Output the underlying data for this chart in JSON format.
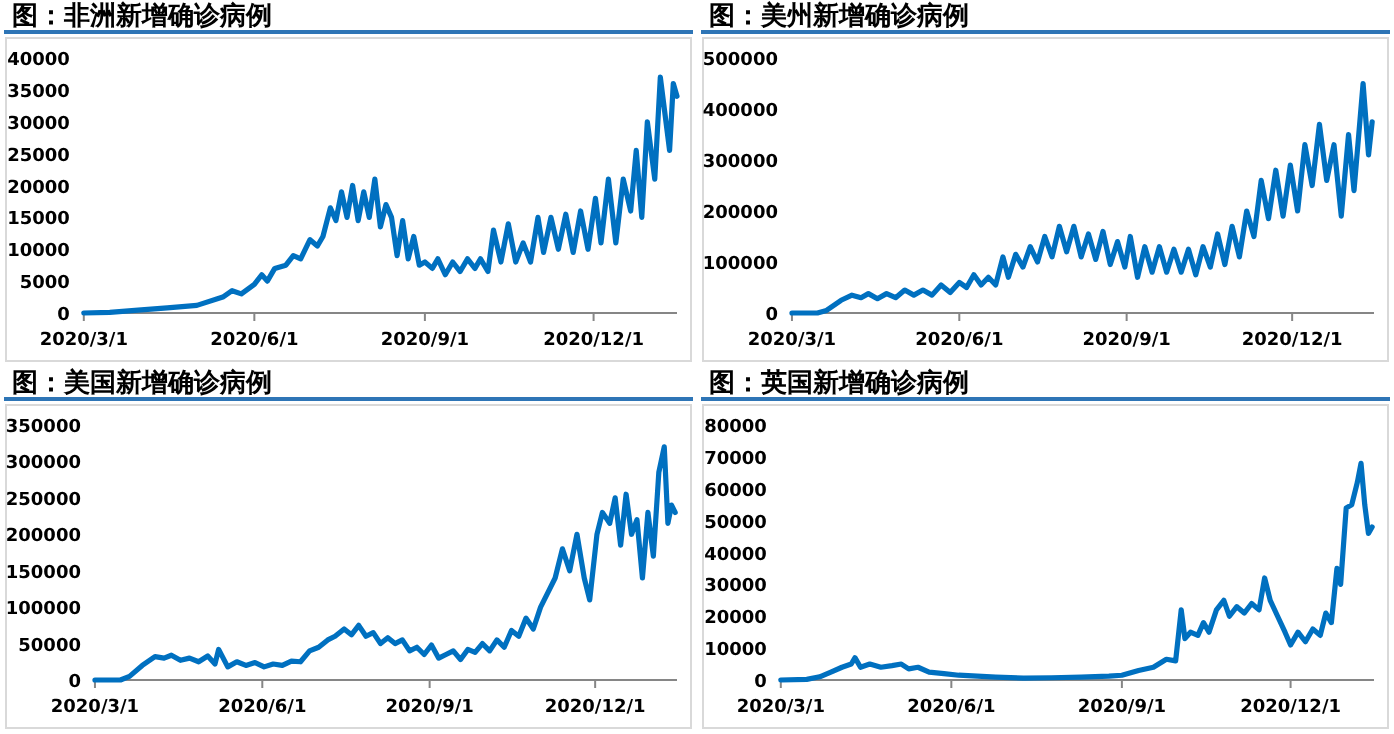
{
  "chart_data": [
    {
      "type": "line",
      "title": "图：非洲新增确诊病例",
      "xlim": [
        "2020-03-01",
        "2021-01-15"
      ],
      "ylim": [
        0,
        40000
      ],
      "yticks": [
        0,
        5000,
        10000,
        15000,
        20000,
        25000,
        30000,
        35000,
        40000
      ],
      "xticks": [
        {
          "value": "2020-03-01",
          "label": "2020/3/1"
        },
        {
          "value": "2020-06-01",
          "label": "2020/6/1"
        },
        {
          "value": "2020-09-01",
          "label": "2020/9/1"
        },
        {
          "value": "2020-12-01",
          "label": "2020/12/1"
        }
      ],
      "x": [
        "2020-03-01",
        "2020-03-15",
        "2020-04-01",
        "2020-04-15",
        "2020-05-01",
        "2020-05-15",
        "2020-05-20",
        "2020-05-25",
        "2020-06-01",
        "2020-06-05",
        "2020-06-08",
        "2020-06-12",
        "2020-06-18",
        "2020-06-22",
        "2020-06-26",
        "2020-07-01",
        "2020-07-05",
        "2020-07-08",
        "2020-07-12",
        "2020-07-15",
        "2020-07-18",
        "2020-07-21",
        "2020-07-24",
        "2020-07-27",
        "2020-07-30",
        "2020-08-02",
        "2020-08-05",
        "2020-08-08",
        "2020-08-11",
        "2020-08-14",
        "2020-08-17",
        "2020-08-20",
        "2020-08-23",
        "2020-08-26",
        "2020-08-29",
        "2020-09-01",
        "2020-09-05",
        "2020-09-08",
        "2020-09-12",
        "2020-09-16",
        "2020-09-20",
        "2020-09-24",
        "2020-09-28",
        "2020-10-01",
        "2020-10-05",
        "2020-10-08",
        "2020-10-12",
        "2020-10-16",
        "2020-10-20",
        "2020-10-24",
        "2020-10-28",
        "2020-11-01",
        "2020-11-04",
        "2020-11-08",
        "2020-11-12",
        "2020-11-16",
        "2020-11-20",
        "2020-11-24",
        "2020-11-28",
        "2020-12-02",
        "2020-12-05",
        "2020-12-09",
        "2020-12-13",
        "2020-12-17",
        "2020-12-21",
        "2020-12-24",
        "2020-12-27",
        "2020-12-30",
        "2021-01-03",
        "2021-01-06",
        "2021-01-11",
        "2021-01-13",
        "2021-01-15"
      ],
      "series": [
        {
          "color": "#0070c0",
          "values": [
            0,
            100,
            500,
            800,
            1200,
            2500,
            3500,
            3000,
            4500,
            6000,
            5000,
            7000,
            7500,
            9000,
            8500,
            11500,
            10500,
            12000,
            16500,
            14500,
            19000,
            15000,
            20000,
            14500,
            19000,
            15000,
            21000,
            13500,
            17000,
            15000,
            9000,
            14500,
            8500,
            12000,
            7500,
            8000,
            7000,
            8500,
            6000,
            8000,
            6500,
            8500,
            7000,
            8500,
            6500,
            13000,
            8000,
            14000,
            8000,
            11000,
            8000,
            15000,
            9500,
            15000,
            10000,
            15500,
            9500,
            16000,
            10000,
            18000,
            11000,
            21000,
            11000,
            21000,
            16000,
            25500,
            15000,
            30000,
            21000,
            37000,
            25500,
            36000,
            34000
          ]
        }
      ]
    },
    {
      "type": "line",
      "title": "图：美州新增确诊病例",
      "xlim": [
        "2020-03-01",
        "2021-01-15"
      ],
      "ylim": [
        0,
        500000
      ],
      "yticks": [
        0,
        100000,
        200000,
        300000,
        400000,
        500000
      ],
      "xticks": [
        {
          "value": "2020-03-01",
          "label": "2020/3/1"
        },
        {
          "value": "2020-06-01",
          "label": "2020/6/1"
        },
        {
          "value": "2020-09-01",
          "label": "2020/9/1"
        },
        {
          "value": "2020-12-01",
          "label": "2020/12/1"
        }
      ],
      "x": [
        "2020-03-01",
        "2020-03-15",
        "2020-03-20",
        "2020-03-28",
        "2020-04-03",
        "2020-04-08",
        "2020-04-12",
        "2020-04-17",
        "2020-04-22",
        "2020-04-27",
        "2020-05-02",
        "2020-05-07",
        "2020-05-12",
        "2020-05-17",
        "2020-05-22",
        "2020-05-27",
        "2020-06-01",
        "2020-06-05",
        "2020-06-09",
        "2020-06-13",
        "2020-06-17",
        "2020-06-21",
        "2020-06-25",
        "2020-06-28",
        "2020-07-02",
        "2020-07-06",
        "2020-07-10",
        "2020-07-14",
        "2020-07-18",
        "2020-07-22",
        "2020-07-26",
        "2020-07-30",
        "2020-08-03",
        "2020-08-07",
        "2020-08-11",
        "2020-08-15",
        "2020-08-19",
        "2020-08-23",
        "2020-08-27",
        "2020-08-31",
        "2020-09-03",
        "2020-09-07",
        "2020-09-11",
        "2020-09-15",
        "2020-09-19",
        "2020-09-23",
        "2020-09-27",
        "2020-10-01",
        "2020-10-05",
        "2020-10-09",
        "2020-10-13",
        "2020-10-17",
        "2020-10-21",
        "2020-10-25",
        "2020-10-29",
        "2020-11-02",
        "2020-11-06",
        "2020-11-10",
        "2020-11-14",
        "2020-11-18",
        "2020-11-22",
        "2020-11-26",
        "2020-11-30",
        "2020-12-04",
        "2020-12-08",
        "2020-12-12",
        "2020-12-16",
        "2020-12-20",
        "2020-12-24",
        "2020-12-28",
        "2021-01-01",
        "2021-01-04",
        "2021-01-09",
        "2021-01-12",
        "2021-01-14"
      ],
      "series": [
        {
          "color": "#0070c0",
          "values": [
            0,
            0,
            5000,
            25000,
            35000,
            30000,
            38000,
            28000,
            38000,
            30000,
            45000,
            35000,
            45000,
            35000,
            55000,
            40000,
            60000,
            50000,
            75000,
            55000,
            70000,
            55000,
            110000,
            70000,
            115000,
            90000,
            130000,
            100000,
            150000,
            110000,
            170000,
            120000,
            170000,
            110000,
            155000,
            105000,
            160000,
            95000,
            140000,
            90000,
            150000,
            70000,
            130000,
            80000,
            130000,
            80000,
            125000,
            80000,
            125000,
            75000,
            130000,
            90000,
            155000,
            95000,
            170000,
            110000,
            200000,
            150000,
            260000,
            185000,
            280000,
            190000,
            290000,
            200000,
            330000,
            250000,
            370000,
            260000,
            330000,
            190000,
            350000,
            240000,
            450000,
            310000,
            375000
          ]
        }
      ]
    },
    {
      "type": "line",
      "title": "图：美国新增确诊病例",
      "xlim": [
        "2020-03-01",
        "2021-01-15"
      ],
      "ylim": [
        0,
        350000
      ],
      "yticks": [
        0,
        50000,
        100000,
        150000,
        200000,
        250000,
        300000,
        350000
      ],
      "xticks": [
        {
          "value": "2020-03-01",
          "label": "2020/3/1"
        },
        {
          "value": "2020-06-01",
          "label": "2020/6/1"
        },
        {
          "value": "2020-09-01",
          "label": "2020/9/1"
        },
        {
          "value": "2020-12-01",
          "label": "2020/12/1"
        }
      ],
      "x": [
        "2020-03-01",
        "2020-03-15",
        "2020-03-20",
        "2020-03-27",
        "2020-04-03",
        "2020-04-08",
        "2020-04-12",
        "2020-04-17",
        "2020-04-22",
        "2020-04-27",
        "2020-05-02",
        "2020-05-06",
        "2020-05-08",
        "2020-05-13",
        "2020-05-18",
        "2020-05-23",
        "2020-05-28",
        "2020-06-02",
        "2020-06-07",
        "2020-06-12",
        "2020-06-17",
        "2020-06-22",
        "2020-06-27",
        "2020-07-02",
        "2020-07-07",
        "2020-07-11",
        "2020-07-16",
        "2020-07-20",
        "2020-07-24",
        "2020-07-28",
        "2020-08-01",
        "2020-08-05",
        "2020-08-09",
        "2020-08-13",
        "2020-08-17",
        "2020-08-21",
        "2020-08-25",
        "2020-08-29",
        "2020-09-02",
        "2020-09-06",
        "2020-09-10",
        "2020-09-14",
        "2020-09-18",
        "2020-09-22",
        "2020-09-26",
        "2020-09-30",
        "2020-10-04",
        "2020-10-08",
        "2020-10-12",
        "2020-10-16",
        "2020-10-20",
        "2020-10-24",
        "2020-10-28",
        "2020-11-01",
        "2020-11-05",
        "2020-11-09",
        "2020-11-13",
        "2020-11-17",
        "2020-11-21",
        "2020-11-25",
        "2020-11-28",
        "2020-12-02",
        "2020-12-05",
        "2020-12-09",
        "2020-12-12",
        "2020-12-15",
        "2020-12-18",
        "2020-12-21",
        "2020-12-24",
        "2020-12-27",
        "2020-12-30",
        "2021-01-02",
        "2021-01-05",
        "2021-01-08",
        "2021-01-10",
        "2021-01-12",
        "2021-01-14"
      ],
      "series": [
        {
          "color": "#0070c0",
          "values": [
            0,
            0,
            5000,
            20000,
            32000,
            30000,
            34000,
            27000,
            30000,
            25000,
            33000,
            22000,
            42000,
            18000,
            25000,
            20000,
            24000,
            18000,
            22000,
            20000,
            26000,
            25000,
            40000,
            45000,
            55000,
            60000,
            70000,
            62000,
            75000,
            60000,
            65000,
            50000,
            58000,
            50000,
            55000,
            40000,
            45000,
            35000,
            48000,
            30000,
            35000,
            40000,
            28000,
            42000,
            38000,
            50000,
            40000,
            55000,
            45000,
            68000,
            60000,
            85000,
            70000,
            100000,
            120000,
            140000,
            180000,
            150000,
            200000,
            140000,
            110000,
            200000,
            230000,
            215000,
            250000,
            185000,
            255000,
            200000,
            220000,
            140000,
            230000,
            170000,
            285000,
            320000,
            215000,
            240000,
            230000
          ]
        }
      ]
    },
    {
      "type": "line",
      "title": "图：英国新增确诊病例",
      "xlim": [
        "2020-03-01",
        "2021-01-15"
      ],
      "ylim": [
        0,
        80000
      ],
      "yticks": [
        0,
        10000,
        20000,
        30000,
        40000,
        50000,
        60000,
        70000,
        80000
      ],
      "xticks": [
        {
          "value": "2020-03-01",
          "label": "2020/3/1"
        },
        {
          "value": "2020-06-01",
          "label": "2020/6/1"
        },
        {
          "value": "2020-09-01",
          "label": "2020/9/1"
        },
        {
          "value": "2020-12-01",
          "label": "2020/12/1"
        }
      ],
      "x": [
        "2020-03-01",
        "2020-03-15",
        "2020-03-22",
        "2020-03-28",
        "2020-04-03",
        "2020-04-08",
        "2020-04-10",
        "2020-04-13",
        "2020-04-18",
        "2020-04-24",
        "2020-04-30",
        "2020-05-05",
        "2020-05-09",
        "2020-05-14",
        "2020-05-20",
        "2020-05-28",
        "2020-06-05",
        "2020-06-15",
        "2020-06-25",
        "2020-07-10",
        "2020-07-25",
        "2020-08-10",
        "2020-08-25",
        "2020-09-01",
        "2020-09-10",
        "2020-09-18",
        "2020-09-25",
        "2020-09-30",
        "2020-10-03",
        "2020-10-05",
        "2020-10-08",
        "2020-10-12",
        "2020-10-15",
        "2020-10-18",
        "2020-10-22",
        "2020-10-26",
        "2020-10-29",
        "2020-11-02",
        "2020-11-06",
        "2020-11-10",
        "2020-11-14",
        "2020-11-17",
        "2020-11-20",
        "2020-11-24",
        "2020-11-28",
        "2020-12-01",
        "2020-12-05",
        "2020-12-09",
        "2020-12-13",
        "2020-12-17",
        "2020-12-20",
        "2020-12-23",
        "2020-12-26",
        "2020-12-28",
        "2020-12-31",
        "2021-01-03",
        "2021-01-06",
        "2021-01-08",
        "2021-01-10",
        "2021-01-12",
        "2021-01-14"
      ],
      "series": [
        {
          "color": "#0070c0",
          "values": [
            0,
            200,
            1000,
            2500,
            4000,
            5000,
            7000,
            4000,
            5000,
            4000,
            4500,
            5000,
            3500,
            4000,
            2500,
            2000,
            1500,
            1200,
            900,
            600,
            700,
            900,
            1200,
            1500,
            3000,
            4000,
            6500,
            6000,
            22000,
            13000,
            15000,
            14000,
            18000,
            15000,
            22000,
            25000,
            20000,
            23000,
            21000,
            24000,
            22000,
            32000,
            25000,
            20000,
            15000,
            11000,
            15000,
            12000,
            16000,
            14000,
            21000,
            18000,
            35000,
            30000,
            54000,
            55000,
            62000,
            68000,
            55000,
            46000,
            48000
          ]
        }
      ]
    }
  ]
}
